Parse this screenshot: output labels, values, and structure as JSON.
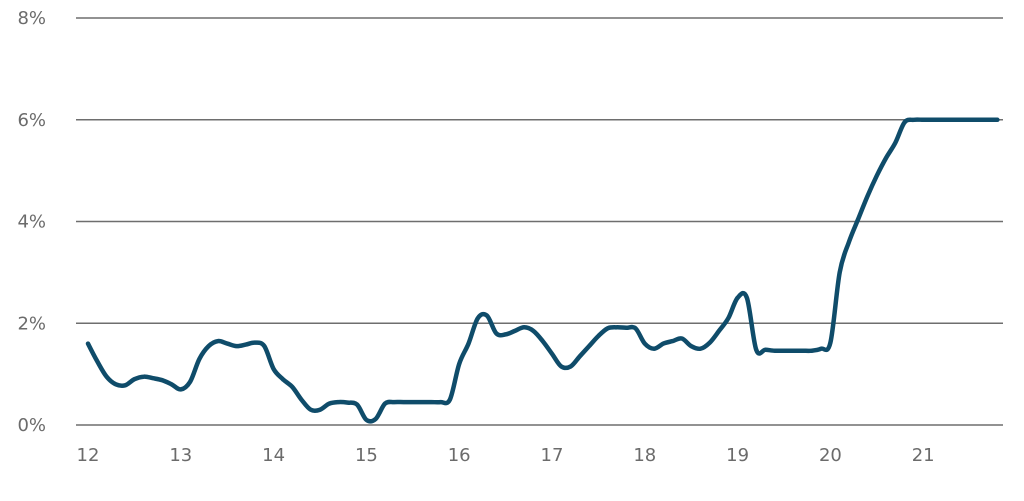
{
  "chart_data": {
    "type": "line",
    "title": "",
    "xlabel": "",
    "ylabel": "",
    "x_tick_labels": [
      "12",
      "13",
      "14",
      "15",
      "16",
      "17",
      "18",
      "19",
      "20",
      "21"
    ],
    "y_tick_labels": [
      "0%",
      "2%",
      "4%",
      "6%",
      "8%"
    ],
    "ylim": [
      0,
      8
    ],
    "xlim": [
      12,
      21.8
    ],
    "grid": true,
    "legend": "none",
    "series": [
      {
        "color": "#0f4c6a",
        "x": [
          12.0,
          12.1,
          12.2,
          12.3,
          12.4,
          12.5,
          12.6,
          12.7,
          12.8,
          12.9,
          13.0,
          13.1,
          13.2,
          13.3,
          13.4,
          13.5,
          13.6,
          13.7,
          13.8,
          13.9,
          14.0,
          14.1,
          14.2,
          14.3,
          14.4,
          14.5,
          14.6,
          14.7,
          14.8,
          14.9,
          15.0,
          15.1,
          15.2,
          15.3,
          15.4,
          15.5,
          15.6,
          15.7,
          15.8,
          15.9,
          16.0,
          16.1,
          16.2,
          16.3,
          16.4,
          16.5,
          16.6,
          16.7,
          16.8,
          16.9,
          17.0,
          17.1,
          17.2,
          17.3,
          17.4,
          17.5,
          17.6,
          17.7,
          17.8,
          17.9,
          18.0,
          18.1,
          18.2,
          18.3,
          18.4,
          18.5,
          18.6,
          18.7,
          18.8,
          18.9,
          19.0,
          19.1,
          19.2,
          19.3,
          19.4,
          19.5,
          19.6,
          19.7,
          19.8,
          19.9,
          20.0,
          20.1,
          20.2,
          20.3,
          20.4,
          20.5,
          20.6,
          20.7,
          20.8,
          20.9,
          21.0,
          21.1,
          21.2,
          21.3,
          21.4,
          21.5,
          21.6,
          21.7,
          21.8
        ],
        "values": [
          1.6,
          1.25,
          0.95,
          0.8,
          0.78,
          0.9,
          0.95,
          0.92,
          0.88,
          0.8,
          0.7,
          0.85,
          1.3,
          1.55,
          1.65,
          1.6,
          1.55,
          1.58,
          1.62,
          1.55,
          1.1,
          0.9,
          0.75,
          0.5,
          0.3,
          0.3,
          0.42,
          0.45,
          0.44,
          0.4,
          0.1,
          0.12,
          0.42,
          0.45,
          0.45,
          0.45,
          0.45,
          0.45,
          0.45,
          0.5,
          1.2,
          1.6,
          2.1,
          2.15,
          1.8,
          1.78,
          1.85,
          1.92,
          1.85,
          1.65,
          1.4,
          1.15,
          1.15,
          1.35,
          1.55,
          1.75,
          1.9,
          1.92,
          1.91,
          1.9,
          1.6,
          1.5,
          1.6,
          1.65,
          1.7,
          1.55,
          1.5,
          1.62,
          1.85,
          2.1,
          2.5,
          2.5,
          1.48,
          1.48,
          1.46,
          1.46,
          1.46,
          1.46,
          1.46,
          1.5,
          1.62,
          3.0,
          3.6,
          4.05,
          4.5,
          4.9,
          5.25,
          5.55,
          5.95,
          6.0,
          6.0,
          6.0,
          6.0,
          6.0,
          6.0,
          6.0,
          6.0,
          6.0,
          6.0
        ]
      }
    ]
  }
}
